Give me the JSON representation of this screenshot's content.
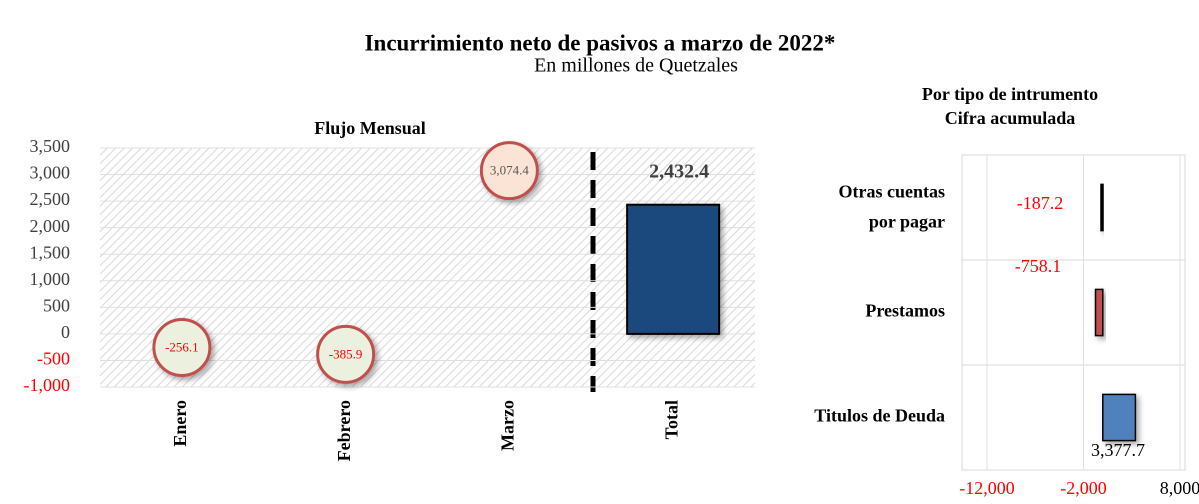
{
  "title": "Incurrimiento neto de pasivos a marzo de 2022*",
  "subtitle": "En millones de Quetzales",
  "chart_data": [
    {
      "type": "bar",
      "title": "Flujo Mensual",
      "categories": [
        "Enero",
        "Febrero",
        "Marzo",
        "Total"
      ],
      "values": [
        -256.1,
        -385.9,
        3074.4,
        2432.4
      ],
      "value_labels": [
        "-256.1",
        "-385.9",
        "3,074.4",
        "2,432.4"
      ],
      "mark_types": [
        "bubble",
        "bubble",
        "bubble",
        "bar"
      ],
      "colors": [
        "#ebf1de",
        "#ebf1de",
        "#fbe3d6",
        "#1f497d"
      ],
      "label_colors": [
        "#ff0000",
        "#ff0000",
        "#595959",
        "#404040"
      ],
      "negative_color": "#ff0000",
      "ylim": [
        -1000,
        3500
      ],
      "yticks": [
        {
          "value": -1000,
          "label": "-1,000"
        },
        -500,
        0,
        500,
        {
          "value": 1000,
          "label": "1,000"
        },
        {
          "value": 1500,
          "label": "1,500"
        },
        {
          "value": 2000,
          "label": "2,000"
        },
        {
          "value": 2500,
          "label": "2,500"
        },
        {
          "value": 3000,
          "label": "3,000"
        },
        {
          "value": 3500,
          "label": "3,500"
        }
      ],
      "grid": true
    },
    {
      "type": "hbar",
      "title": "Por tipo de intrumento",
      "subtitle": "Cifra acumulada",
      "categories": [
        "Otras cuentas por pagar",
        "Prestamos",
        "Titulos de Deuda"
      ],
      "values": [
        -187.2,
        -758.1,
        3377.7
      ],
      "value_labels": [
        "-187.2",
        "-758.1",
        "3,377.7"
      ],
      "colors": [
        "#000000",
        "#c0504d",
        "#4f81bd"
      ],
      "label_colors": [
        "#ff0000",
        "#ff0000",
        "#000000"
      ],
      "xlim": [
        -12000,
        8000
      ],
      "xticks": [
        {
          "value": -12000,
          "label": "-12,000"
        },
        {
          "value": -2000,
          "label": "-2,000"
        },
        {
          "value": 8000,
          "label": "8,000"
        }
      ],
      "tick_colors": [
        "#ff0000",
        "#ff0000",
        "#000000"
      ],
      "grid": true
    }
  ]
}
